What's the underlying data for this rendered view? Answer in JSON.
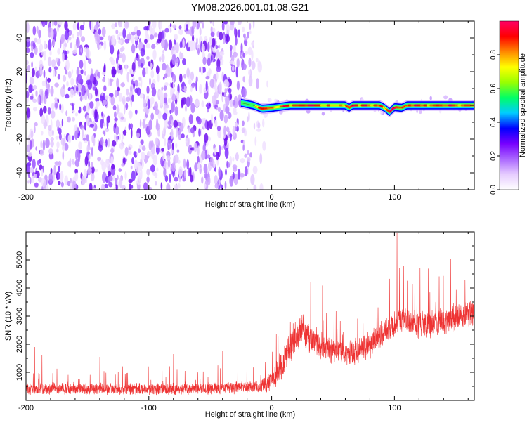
{
  "page_title": "YM08.2026.001.01.08.G21",
  "chart_data": [
    {
      "type": "heatmap",
      "title": "YM08.2026.001.01.08.G21",
      "xlabel": "Height of straight line (km)",
      "ylabel": "Frequency (Hz)",
      "xlim": [
        -200,
        165
      ],
      "ylim": [
        -50,
        50
      ],
      "x_ticks": [
        {
          "value": -200,
          "label": "-200"
        },
        {
          "value": -100,
          "label": "-100"
        },
        {
          "value": 0,
          "label": "0"
        },
        {
          "value": 100,
          "label": "100"
        }
      ],
      "y_ticks": [
        {
          "value": -40,
          "label": "-40"
        },
        {
          "value": -20,
          "label": "-20"
        },
        {
          "value": 0,
          "label": "0"
        },
        {
          "value": 20,
          "label": "20"
        },
        {
          "value": 40,
          "label": "40"
        }
      ],
      "colorbar": {
        "label": "Normalized spectral amplitude",
        "range": [
          0,
          1
        ],
        "ticks": [
          {
            "value": 0.0,
            "label": "0.0"
          },
          {
            "value": 0.2,
            "label": "0.2"
          },
          {
            "value": 0.4,
            "label": "0.4"
          },
          {
            "value": 0.6,
            "label": "0.6"
          },
          {
            "value": 0.8,
            "label": "0.8"
          }
        ],
        "colormap": [
          "#ffffff",
          "#e6ccff",
          "#aa66ff",
          "#7700ff",
          "#0000ff",
          "#00ccff",
          "#00ff66",
          "#99ff00",
          "#ffff00",
          "#ff8800",
          "#ff0000",
          "#ff0066"
        ]
      },
      "noise_region_x": [
        -200,
        -10
      ],
      "noise_amplitude": 0.25,
      "signal_line": {
        "x_start": -25,
        "x_end": 165,
        "frequency_profile": [
          [
            -25,
            1.5
          ],
          [
            -15,
            0
          ],
          [
            -8,
            -2
          ],
          [
            0,
            -1.5
          ],
          [
            15,
            0
          ],
          [
            60,
            0
          ],
          [
            63,
            -1.5
          ],
          [
            66,
            0
          ],
          [
            88,
            0
          ],
          [
            92,
            -1.5
          ],
          [
            96,
            -4
          ],
          [
            100,
            -1
          ],
          [
            106,
            -1.5
          ],
          [
            110,
            0
          ],
          [
            165,
            0
          ]
        ],
        "peak_amplitude": 0.95
      }
    },
    {
      "type": "line",
      "xlabel": "Height of straight line (km)",
      "ylabel": "SNR (10 * v/v)",
      "xlim": [
        -200,
        165
      ],
      "ylim": [
        0,
        6000
      ],
      "x_ticks": [
        {
          "value": -200,
          "label": "-200"
        },
        {
          "value": -100,
          "label": "-100"
        },
        {
          "value": 0,
          "label": "0"
        },
        {
          "value": 100,
          "label": "100"
        }
      ],
      "y_ticks": [
        {
          "value": 1000,
          "label": "1000"
        },
        {
          "value": 2000,
          "label": "2000"
        },
        {
          "value": 3000,
          "label": "3000"
        },
        {
          "value": 4000,
          "label": "4000"
        },
        {
          "value": 5000,
          "label": "5000"
        }
      ],
      "line_color": "#ee3333",
      "trend": [
        [
          -200,
          420
        ],
        [
          -150,
          420
        ],
        [
          -100,
          400
        ],
        [
          -50,
          420
        ],
        [
          -10,
          480
        ],
        [
          0,
          650
        ],
        [
          10,
          1400
        ],
        [
          20,
          2300
        ],
        [
          25,
          2500
        ],
        [
          30,
          2250
        ],
        [
          45,
          1850
        ],
        [
          60,
          1650
        ],
        [
          70,
          1750
        ],
        [
          85,
          2150
        ],
        [
          100,
          2700
        ],
        [
          105,
          2950
        ],
        [
          115,
          2750
        ],
        [
          130,
          2700
        ],
        [
          150,
          2950
        ],
        [
          165,
          3150
        ]
      ],
      "noise_band": [
        [
          -200,
          200
        ],
        [
          -10,
          200
        ],
        [
          10,
          500
        ],
        [
          25,
          550
        ],
        [
          60,
          450
        ],
        [
          100,
          500
        ],
        [
          165,
          450
        ]
      ],
      "spikes": [
        {
          "x": -193,
          "y": 1900
        },
        {
          "x": -187,
          "y": 1600
        },
        {
          "x": -140,
          "y": 1550
        },
        {
          "x": -80,
          "y": 1650
        },
        {
          "x": -40,
          "y": 1750
        },
        {
          "x": 102,
          "y": 5950
        },
        {
          "x": 104,
          "y": 4700
        }
      ]
    }
  ]
}
